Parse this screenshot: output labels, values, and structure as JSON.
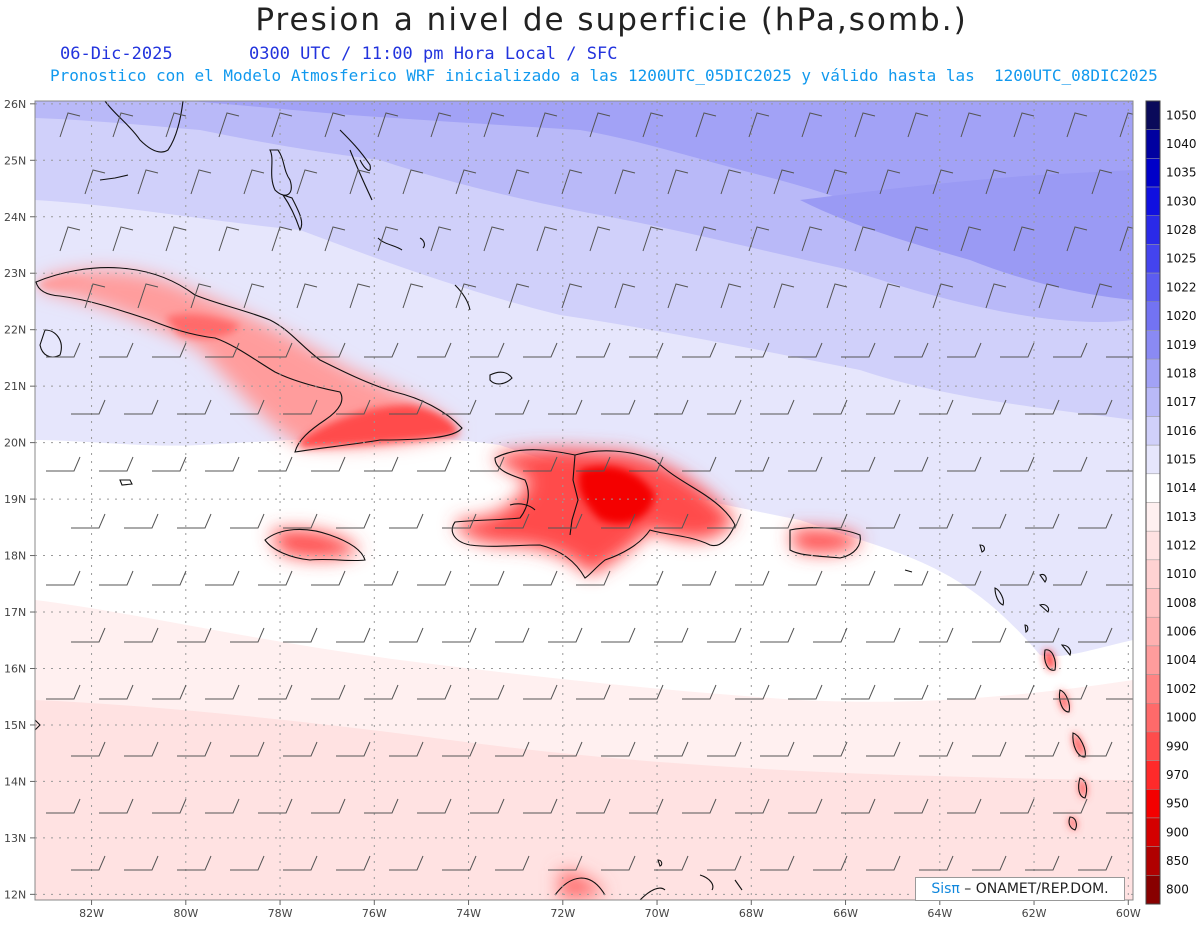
{
  "title": "Presion a nivel de superficie (hPa,somb.)",
  "date_label": "06-Dic-2025",
  "time_label": "0300 UTC / 11:00 pm Hora Local / SFC",
  "forecast_label": "Pronostico con el Modelo Atmosferico WRF inicializado a las 1200UTC_05DIC2025 y válido hasta las  1200UTC_08DIC2025",
  "latitude_labels": [
    "26N",
    "25N",
    "24N",
    "23N",
    "22N",
    "21N",
    "20N",
    "19N",
    "18N",
    "17N",
    "16N",
    "15N",
    "14N",
    "13N",
    "12N"
  ],
  "longitude_labels": [
    "82W",
    "80W",
    "78W",
    "76W",
    "74W",
    "72W",
    "70W",
    "68W",
    "66W",
    "64W",
    "62W",
    "60W"
  ],
  "colorbar": {
    "levels": [
      "1050",
      "1040",
      "1035",
      "1030",
      "1028",
      "1025",
      "1022",
      "1020",
      "1019",
      "1018",
      "1017",
      "1016",
      "1015",
      "1014",
      "1013",
      "1012",
      "1010",
      "1008",
      "1006",
      "1004",
      "1002",
      "1000",
      "990",
      "970",
      "950",
      "900",
      "850",
      "800"
    ],
    "colors": [
      "#0a0a5a",
      "#0000a0",
      "#0000c8",
      "#1010e0",
      "#2a2ae8",
      "#4444ee",
      "#5c5cf0",
      "#7373f2",
      "#8a8af4",
      "#a2a2f6",
      "#b9b9f8",
      "#d0d0fa",
      "#e6e6fc",
      "#ffffff",
      "#fff0f0",
      "#ffe2e2",
      "#ffd2d2",
      "#ffc2c2",
      "#ffb0b0",
      "#ff9c9c",
      "#ff8484",
      "#ff6a6a",
      "#ff4c4c",
      "#ff2a2a",
      "#f40000",
      "#d40000",
      "#b00000",
      "#880000"
    ]
  },
  "credit": {
    "logo": "Sisπ",
    "text": " – ONAMET/REP.DOM."
  },
  "map_colors": {
    "coast": "#111111",
    "barb": "#555555",
    "grid": "#999999"
  }
}
